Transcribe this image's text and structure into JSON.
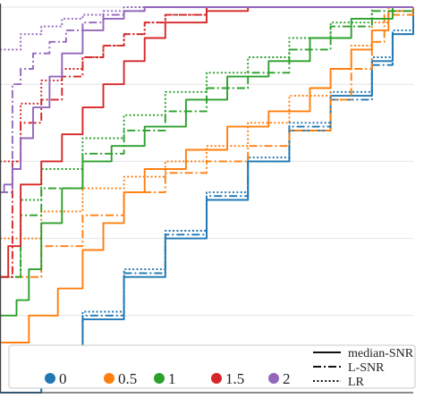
{
  "chart_data": {
    "type": "line",
    "title": "",
    "xlabel": "",
    "ylabel": "",
    "xlim": [
      0,
      1
    ],
    "ylim": [
      0,
      1
    ],
    "grid": "horizontal",
    "legend_placement": "bottom",
    "color_legend": [
      {
        "label": "0",
        "color": "#1f77b4"
      },
      {
        "label": "0.5",
        "color": "#ff7f0e"
      },
      {
        "label": "1",
        "color": "#2ca02c"
      },
      {
        "label": "1.5",
        "color": "#d62728"
      },
      {
        "label": "2",
        "color": "#9467bd"
      }
    ],
    "style_legend": [
      {
        "label": "median-SNR",
        "dash": "solid"
      },
      {
        "label": "L-SNR",
        "dash": "dashdot"
      },
      {
        "label": "LR",
        "dash": "dotted"
      }
    ],
    "series": [
      {
        "group": "0",
        "style": "solid",
        "color": "#1f77b4",
        "x": [
          0,
          0.1,
          0.2,
          0.3,
          0.4,
          0.5,
          0.6,
          0.7,
          0.8,
          0.9,
          0.95,
          1
        ],
        "y": [
          0,
          0.09,
          0.19,
          0.3,
          0.4,
          0.5,
          0.6,
          0.68,
          0.77,
          0.86,
          0.93,
          1
        ]
      },
      {
        "group": "0",
        "style": "dashdot",
        "color": "#1f77b4",
        "x": [
          0,
          0.1,
          0.2,
          0.3,
          0.4,
          0.5,
          0.6,
          0.7,
          0.8,
          0.9,
          0.95,
          1
        ],
        "y": [
          0,
          0.1,
          0.2,
          0.31,
          0.41,
          0.51,
          0.6,
          0.69,
          0.76,
          0.85,
          0.93,
          1
        ]
      },
      {
        "group": "0",
        "style": "dotted",
        "color": "#1f77b4",
        "x": [
          0,
          0.1,
          0.2,
          0.3,
          0.4,
          0.5,
          0.6,
          0.7,
          0.8,
          0.9,
          0.95,
          1
        ],
        "y": [
          0,
          0.11,
          0.21,
          0.32,
          0.42,
          0.52,
          0.61,
          0.7,
          0.78,
          0.87,
          0.94,
          1
        ]
      },
      {
        "group": "0.5",
        "style": "solid",
        "color": "#ff7f0e",
        "x": [
          0,
          0.07,
          0.14,
          0.2,
          0.25,
          0.3,
          0.35,
          0.45,
          0.55,
          0.65,
          0.75,
          0.8,
          0.85,
          0.9,
          0.94,
          1
        ],
        "y": [
          0.13,
          0.2,
          0.27,
          0.37,
          0.44,
          0.52,
          0.58,
          0.63,
          0.69,
          0.73,
          0.79,
          0.84,
          0.89,
          0.94,
          0.99,
          1
        ]
      },
      {
        "group": "0.5",
        "style": "dashdot",
        "color": "#ff7f0e",
        "x": [
          0,
          0.1,
          0.2,
          0.3,
          0.4,
          0.5,
          0.6,
          0.7,
          0.8,
          0.85,
          0.9,
          0.93,
          1
        ],
        "y": [
          0.3,
          0.38,
          0.46,
          0.52,
          0.57,
          0.6,
          0.64,
          0.68,
          0.76,
          0.84,
          0.91,
          0.98,
          1
        ]
      },
      {
        "group": "0.5",
        "style": "dotted",
        "color": "#ff7f0e",
        "x": [
          0,
          0.1,
          0.2,
          0.3,
          0.4,
          0.5,
          0.6,
          0.7,
          0.8,
          0.85,
          0.9,
          0.94,
          1
        ],
        "y": [
          0.4,
          0.47,
          0.53,
          0.56,
          0.6,
          0.64,
          0.7,
          0.77,
          0.84,
          0.9,
          0.96,
          1,
          1
        ]
      },
      {
        "group": "1",
        "style": "solid",
        "color": "#2ca02c",
        "x": [
          0,
          0.04,
          0.07,
          0.1,
          0.15,
          0.2,
          0.27,
          0.35,
          0.45,
          0.55,
          0.65,
          0.75,
          0.85,
          0.95,
          1
        ],
        "y": [
          0.2,
          0.24,
          0.32,
          0.44,
          0.53,
          0.6,
          0.64,
          0.69,
          0.76,
          0.82,
          0.86,
          0.92,
          0.97,
          1,
          1
        ]
      },
      {
        "group": "1",
        "style": "dashdot",
        "color": "#2ca02c",
        "x": [
          0,
          0.05,
          0.1,
          0.2,
          0.3,
          0.4,
          0.5,
          0.6,
          0.7,
          0.8,
          0.9,
          1
        ],
        "y": [
          0.3,
          0.46,
          0.53,
          0.62,
          0.68,
          0.73,
          0.79,
          0.83,
          0.89,
          0.95,
          0.99,
          1
        ]
      },
      {
        "group": "1",
        "style": "dotted",
        "color": "#2ca02c",
        "x": [
          0,
          0.05,
          0.1,
          0.2,
          0.3,
          0.4,
          0.5,
          0.6,
          0.7,
          0.8,
          0.9,
          1
        ],
        "y": [
          0.3,
          0.5,
          0.58,
          0.66,
          0.72,
          0.78,
          0.83,
          0.87,
          0.92,
          0.96,
          1,
          1
        ]
      },
      {
        "group": "1.5",
        "style": "solid",
        "color": "#d62728",
        "x": [
          0,
          0.02,
          0.05,
          0.1,
          0.15,
          0.2,
          0.25,
          0.3,
          0.35,
          0.4,
          0.5,
          0.6,
          0.7,
          1
        ],
        "y": [
          0.3,
          0.38,
          0.54,
          0.6,
          0.67,
          0.74,
          0.8,
          0.86,
          0.92,
          0.96,
          0.99,
          1,
          1,
          1
        ]
      },
      {
        "group": "1.5",
        "style": "dashdot",
        "color": "#d62728",
        "x": [
          0,
          0.03,
          0.05,
          0.1,
          0.15,
          0.2,
          0.25,
          0.3,
          0.35,
          0.4,
          0.5,
          0.6,
          1
        ],
        "y": [
          0.3,
          0.6,
          0.7,
          0.76,
          0.82,
          0.87,
          0.9,
          0.93,
          0.96,
          0.98,
          1,
          1,
          1
        ]
      },
      {
        "group": "1.5",
        "style": "dotted",
        "color": "#d62728",
        "x": [
          0,
          0.05,
          0.1,
          0.15,
          0.2,
          0.25,
          0.3,
          0.35,
          0.4,
          0.5,
          0.6,
          1
        ],
        "y": [
          0.6,
          0.75,
          0.81,
          0.84,
          0.87,
          0.9,
          0.93,
          0.96,
          0.98,
          1,
          1,
          1
        ]
      },
      {
        "group": "2",
        "style": "solid",
        "color": "#9467bd",
        "x": [
          0,
          0.01,
          0.03,
          0.05,
          0.08,
          0.12,
          0.15,
          0.2,
          0.25,
          0.3,
          0.35,
          1
        ],
        "y": [
          0.52,
          0.54,
          0.58,
          0.66,
          0.74,
          0.82,
          0.88,
          0.94,
          0.97,
          0.99,
          1,
          1
        ]
      },
      {
        "group": "2",
        "style": "dashdot",
        "color": "#9467bd",
        "x": [
          0,
          0.03,
          0.05,
          0.08,
          0.12,
          0.16,
          0.2,
          0.25,
          0.3,
          0.35,
          1
        ],
        "y": [
          0.52,
          0.8,
          0.84,
          0.88,
          0.91,
          0.94,
          0.96,
          0.98,
          0.99,
          1,
          1
        ]
      },
      {
        "group": "2",
        "style": "dotted",
        "color": "#9467bd",
        "x": [
          0,
          0.05,
          0.1,
          0.15,
          0.2,
          0.25,
          0.3,
          0.35,
          1
        ],
        "y": [
          0.89,
          0.93,
          0.95,
          0.97,
          0.98,
          0.99,
          1,
          1,
          1
        ]
      }
    ]
  }
}
